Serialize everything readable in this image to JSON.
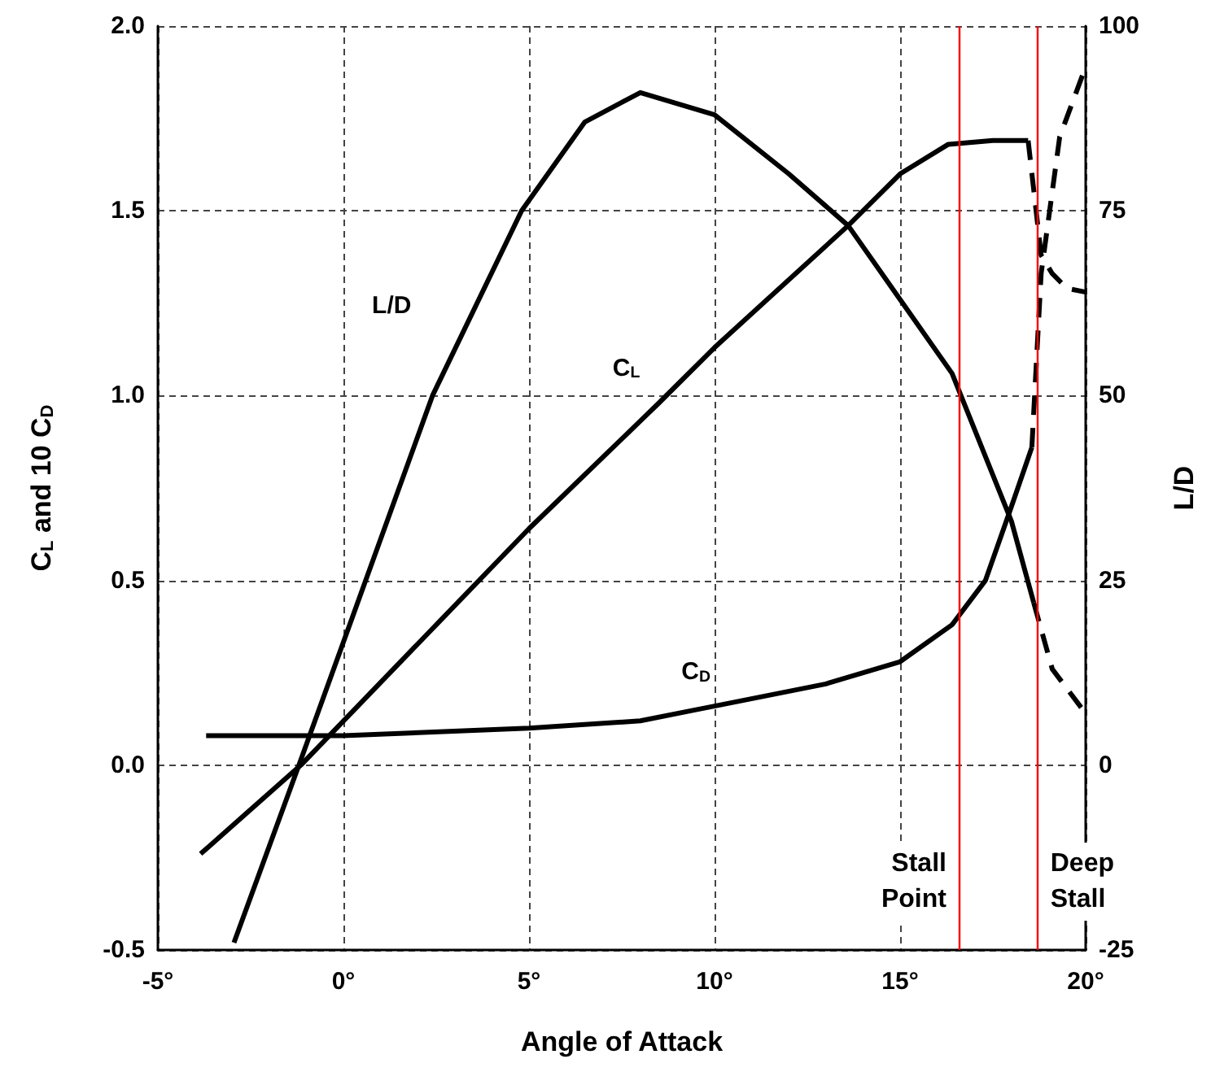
{
  "chart_data": {
    "type": "line",
    "xlabel": "Angle of Attack",
    "ylabel": "C$_{L}$ and 10 C$_{D}$",
    "y2label": "L/D",
    "xlim": [
      -5,
      20
    ],
    "xticks": [
      {
        "value": -5,
        "label": "-5°"
      },
      {
        "value": 0,
        "label": "0°"
      },
      {
        "value": 5,
        "label": "5°"
      },
      {
        "value": 10,
        "label": "10°"
      },
      {
        "value": 15,
        "label": "15°"
      },
      {
        "value": 20,
        "label": "20°"
      }
    ],
    "ylim": [
      -0.5,
      2.0
    ],
    "yticks": [
      {
        "value": -0.5,
        "label": "-0.5"
      },
      {
        "value": 0,
        "label": "0.0"
      },
      {
        "value": 0.5,
        "label": "0.5"
      },
      {
        "value": 1,
        "label": "1.0"
      },
      {
        "value": 1.5,
        "label": "1.5"
      },
      {
        "value": 2,
        "label": "2.0"
      }
    ],
    "y2lim": [
      -25,
      100
    ],
    "y2ticks": [
      -25,
      0,
      25,
      50,
      75,
      100
    ],
    "grid": true,
    "legend": false,
    "marker": "none",
    "series": [
      {
        "name": "L/D",
        "color": "#000000",
        "axis": "y2",
        "line_style": "solid",
        "x": [
          -2.95,
          -1.2,
          0.6,
          2.4,
          4.8,
          6.5,
          8,
          10,
          12,
          13.6,
          15,
          16.4,
          18,
          18.6
        ],
        "values": [
          -24,
          0,
          25,
          50,
          75,
          87,
          91,
          88,
          80,
          73,
          63,
          53,
          33,
          22
        ]
      },
      {
        "color": "#000000",
        "axis": "y2",
        "line_style": "dashed",
        "x": [
          18.6,
          19.1,
          20
        ],
        "values": [
          22,
          13,
          7
        ]
      },
      {
        "name": "C$_{L}$",
        "color": "#000000",
        "axis": "y",
        "line_style": "solid",
        "x": [
          -3.85,
          -1.15,
          5,
          8.5,
          10,
          13.6,
          15,
          16.3,
          17.5,
          18.45
        ],
        "values": [
          -0.24,
          0,
          0.64,
          0.98,
          1.13,
          1.46,
          1.6,
          1.68,
          1.69,
          1.69
        ]
      },
      {
        "color": "#000000",
        "axis": "y",
        "line_style": "dashed",
        "x": [
          18.45,
          18.8,
          19.1,
          19.5,
          20
        ],
        "values": [
          1.69,
          1.38,
          1.33,
          1.29,
          1.28
        ]
      },
      {
        "name": "C$_{D}$",
        "color": "#000000",
        "axis": "y",
        "line_style": "solid",
        "x": [
          -3.7,
          0,
          5,
          8,
          9.5,
          10,
          13,
          15,
          16.4,
          17.3,
          18,
          18.55
        ],
        "values": [
          0.08,
          0.08,
          0.1,
          0.12,
          0.15,
          0.16,
          0.22,
          0.28,
          0.38,
          0.5,
          0.7,
          0.86
        ]
      },
      {
        "color": "#000000",
        "axis": "y",
        "line_style": "dashed",
        "x": [
          18.55,
          18.8,
          19.3,
          20
        ],
        "values": [
          0.86,
          1.33,
          1.7,
          1.89
        ]
      }
    ],
    "ref_lines": [
      {
        "axis": "x",
        "value": 16.6,
        "label": "Stall Point",
        "color": "#ff0000",
        "line_style": "solid"
      },
      {
        "axis": "x",
        "value": 18.7,
        "label": "Deep Stall",
        "color": "#ff0000",
        "line_style": "solid"
      }
    ]
  }
}
